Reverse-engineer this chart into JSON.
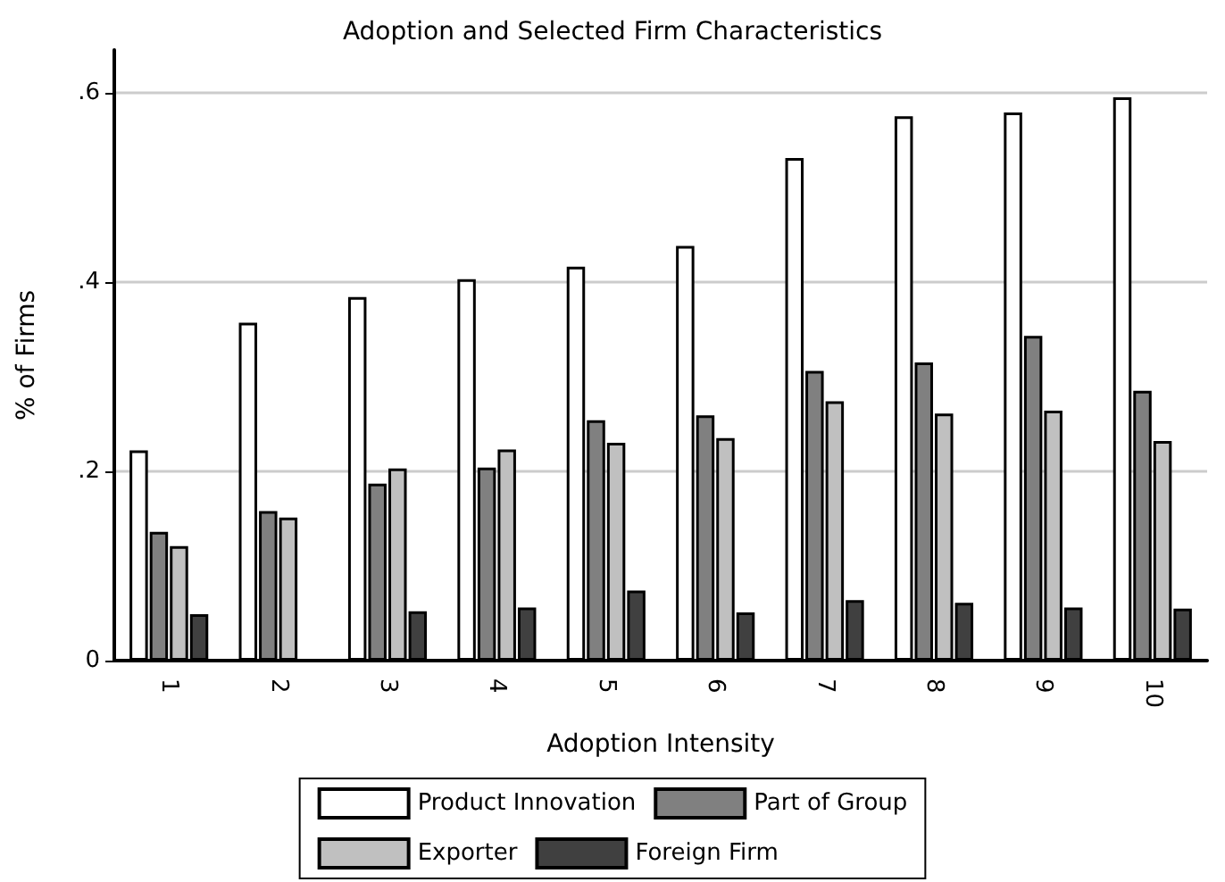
{
  "chart_data": {
    "type": "bar",
    "title": "Adoption and Selected Firm Characteristics",
    "xlabel": "Adoption Intensity",
    "ylabel": "% of Firms",
    "categories": [
      "1",
      "2",
      "3",
      "4",
      "5",
      "6",
      "7",
      "8",
      "9",
      "10"
    ],
    "series": [
      {
        "name": "Product Innovation",
        "color": "#ffffff",
        "values": [
          0.222,
          0.357,
          0.384,
          0.403,
          0.416,
          0.438,
          0.531,
          0.575,
          0.579,
          0.595
        ]
      },
      {
        "name": "Part of Group",
        "color": "#808080",
        "values": [
          0.136,
          0.158,
          0.187,
          0.204,
          0.254,
          0.259,
          0.306,
          0.315,
          0.343,
          0.285
        ]
      },
      {
        "name": "Exporter",
        "color": "#c0c0c0",
        "values": [
          0.121,
          0.151,
          0.203,
          0.223,
          0.23,
          0.235,
          0.274,
          0.261,
          0.264,
          0.232
        ]
      },
      {
        "name": "Foreign Firm",
        "color": "#404040",
        "values": [
          0.049,
          null,
          0.052,
          0.056,
          0.074,
          0.051,
          0.064,
          0.061,
          0.056,
          0.055
        ]
      }
    ],
    "ylim": [
      0,
      0.645
    ],
    "yticks": [
      0,
      {
        "value": 0.2,
        "label": ".2"
      },
      {
        "value": 0.4,
        "label": ".4"
      },
      {
        "value": 0.6,
        "label": ".6"
      }
    ],
    "grid": "y",
    "legend": "bottom"
  }
}
